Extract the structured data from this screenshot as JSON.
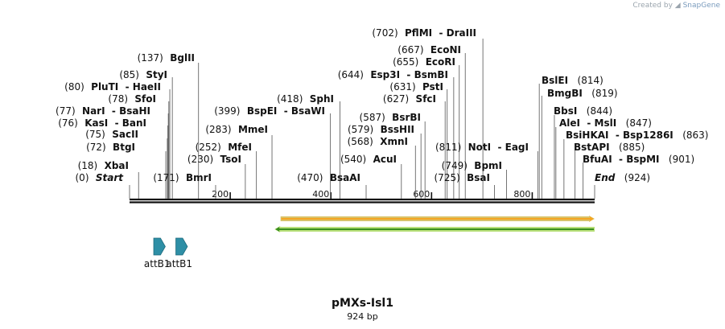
{
  "credit": {
    "prefix": "Created by",
    "brand": "SnapGene"
  },
  "map": {
    "name": "pMXs-Isl1",
    "length_label": "924 bp",
    "total_bp": 924,
    "ticks": [
      {
        "bp": 200,
        "label": "200"
      },
      {
        "bp": 400,
        "label": "400"
      },
      {
        "bp": 600,
        "label": "600"
      },
      {
        "bp": 800,
        "label": "800"
      }
    ]
  },
  "sites": [
    {
      "id": "start",
      "pos": 0,
      "pos_label": "(0)",
      "names": [
        "Start"
      ],
      "italic": true
    },
    {
      "id": "xbai",
      "pos": 18,
      "pos_label": "(18)",
      "names": [
        "XbaI"
      ]
    },
    {
      "id": "btgi",
      "pos": 72,
      "pos_label": "(72)",
      "names": [
        "BtgI"
      ]
    },
    {
      "id": "sacii",
      "pos": 75,
      "pos_label": "(75)",
      "names": [
        "SacII"
      ]
    },
    {
      "id": "kasi",
      "pos": 76,
      "pos_label": "(76)",
      "names": [
        "KasI",
        "BanI"
      ]
    },
    {
      "id": "nari",
      "pos": 77,
      "pos_label": "(77)",
      "names": [
        "NarI",
        "BsaHI"
      ]
    },
    {
      "id": "sfoi",
      "pos": 78,
      "pos_label": "(78)",
      "names": [
        "SfoI"
      ]
    },
    {
      "id": "pluti",
      "pos": 80,
      "pos_label": "(80)",
      "names": [
        "PluTI",
        "HaeII"
      ]
    },
    {
      "id": "styi",
      "pos": 85,
      "pos_label": "(85)",
      "names": [
        "StyI"
      ]
    },
    {
      "id": "bglii",
      "pos": 137,
      "pos_label": "(137)",
      "names": [
        "BglII"
      ]
    },
    {
      "id": "bmri",
      "pos": 171,
      "pos_label": "(171)",
      "names": [
        "BmrI"
      ]
    },
    {
      "id": "tsoi",
      "pos": 230,
      "pos_label": "(230)",
      "names": [
        "TsoI"
      ]
    },
    {
      "id": "mfei",
      "pos": 252,
      "pos_label": "(252)",
      "names": [
        "MfeI"
      ]
    },
    {
      "id": "mmei",
      "pos": 283,
      "pos_label": "(283)",
      "names": [
        "MmeI"
      ]
    },
    {
      "id": "bspei",
      "pos": 399,
      "pos_label": "(399)",
      "names": [
        "BspEI",
        "BsaWI"
      ]
    },
    {
      "id": "sphi",
      "pos": 418,
      "pos_label": "(418)",
      "names": [
        "SphI"
      ]
    },
    {
      "id": "bsaai",
      "pos": 470,
      "pos_label": "(470)",
      "names": [
        "BsaAI"
      ]
    },
    {
      "id": "acui",
      "pos": 540,
      "pos_label": "(540)",
      "names": [
        "AcuI"
      ]
    },
    {
      "id": "xmni",
      "pos": 568,
      "pos_label": "(568)",
      "names": [
        "XmnI"
      ]
    },
    {
      "id": "bsshii",
      "pos": 579,
      "pos_label": "(579)",
      "names": [
        "BssHII"
      ]
    },
    {
      "id": "bsrbi",
      "pos": 587,
      "pos_label": "(587)",
      "names": [
        "BsrBI"
      ]
    },
    {
      "id": "sfci",
      "pos": 627,
      "pos_label": "(627)",
      "names": [
        "SfcI"
      ]
    },
    {
      "id": "psti",
      "pos": 631,
      "pos_label": "(631)",
      "names": [
        "PstI"
      ]
    },
    {
      "id": "esp3i",
      "pos": 644,
      "pos_label": "(644)",
      "names": [
        "Esp3I",
        "BsmBI"
      ]
    },
    {
      "id": "ecori",
      "pos": 655,
      "pos_label": "(655)",
      "names": [
        "EcoRI"
      ]
    },
    {
      "id": "econi",
      "pos": 667,
      "pos_label": "(667)",
      "names": [
        "EcoNI"
      ]
    },
    {
      "id": "pflmi",
      "pos": 702,
      "pos_label": "(702)",
      "names": [
        "PflMI",
        "DraIII"
      ]
    },
    {
      "id": "bsai",
      "pos": 725,
      "pos_label": "(725)",
      "names": [
        "BsaI"
      ]
    },
    {
      "id": "bpmi",
      "pos": 749,
      "pos_label": "(749)",
      "names": [
        "BpmI"
      ]
    },
    {
      "id": "noti",
      "pos": 811,
      "pos_label": "(811)",
      "names": [
        "NotI",
        "EagI"
      ]
    },
    {
      "id": "bslei",
      "pos": 814,
      "pos_label": "(814)",
      "names": [
        "BslEI"
      ]
    },
    {
      "id": "bmgbi",
      "pos": 819,
      "pos_label": "(819)",
      "names": [
        "BmgBI"
      ]
    },
    {
      "id": "bbsi",
      "pos": 844,
      "pos_label": "(844)",
      "names": [
        "BbsI"
      ]
    },
    {
      "id": "alei",
      "pos": 847,
      "pos_label": "(847)",
      "names": [
        "AleI",
        "MslI"
      ]
    },
    {
      "id": "bsihkai",
      "pos": 863,
      "pos_label": "(863)",
      "names": [
        "BsiHKAI",
        "Bsp1286I"
      ]
    },
    {
      "id": "bstapi",
      "pos": 885,
      "pos_label": "(885)",
      "names": [
        "BstAPI"
      ]
    },
    {
      "id": "bfuai",
      "pos": 901,
      "pos_label": "(901)",
      "names": [
        "BfuAI",
        "BspMI"
      ]
    },
    {
      "id": "end",
      "pos": 924,
      "pos_label": "(924)",
      "names": [
        "End"
      ],
      "italic": true
    }
  ],
  "features": [
    {
      "id": "attb1-a",
      "name": "attB1",
      "start": 48,
      "end": 71,
      "strand": 1,
      "color": "#2e8fa6"
    },
    {
      "id": "attb1-b",
      "name": "attB1",
      "start": 92,
      "end": 115,
      "strand": 1,
      "color": "#2e8fa6"
    }
  ],
  "arrows": [
    {
      "id": "orange-arrow",
      "start": 300,
      "end": 924,
      "strand": 1,
      "fill": "#f5a623",
      "edge": "#d9c36a"
    },
    {
      "id": "green-arrow",
      "start": 288,
      "end": 924,
      "strand": -1,
      "fill": "#3a8f1f",
      "edge": "#b8e07a"
    }
  ]
}
